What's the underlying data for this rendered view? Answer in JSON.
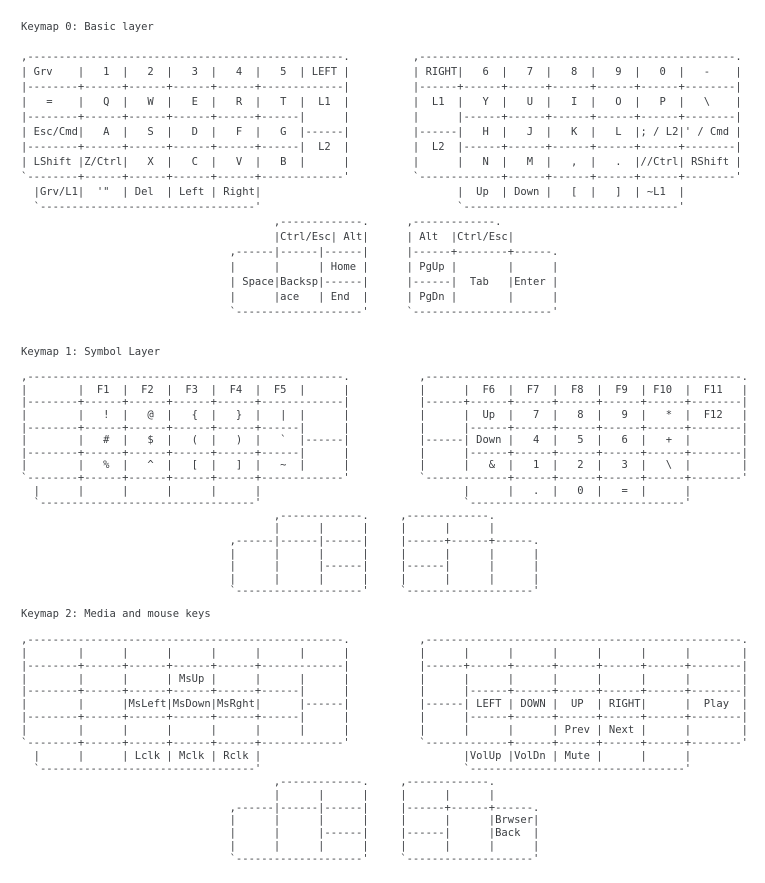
{
  "colors": {
    "text": "#3b3e42",
    "background": "#ffffff"
  },
  "sections": [
    {
      "title": "Keymap 0: Basic layer",
      "art": [
        ",--------------------------------------------------.          ,--------------------------------------------------.",
        "| Grv    |   1  |   2  |   3  |   4  |   5  | LEFT |          | RIGHT|   6  |   7  |   8  |   9  |   0  |   -    |",
        "|--------+------+------+------+------+-------------|          |------+------+------+------+------+------+--------|",
        "|   =    |   Q  |   W  |   E  |   R  |   T  |  L1  |          |  L1  |   Y  |   U  |   I  |   O  |   P  |   \\    |",
        "|--------+------+------+------+------+------|      |          |      |------+------+------+------+------+--------|",
        "| Esc/Cmd|   A  |   S  |   D  |   F  |   G  |------|          |------|   H  |   J  |   K  |   L  |; / L2|' / Cmd |",
        "|--------+------+------+------+------+------|  L2  |          |  L2  |------+------+------+------+------+--------|",
        "| LShift |Z/Ctrl|   X  |   C  |   V  |   B  |      |          |      |   N  |   M  |   ,  |   .  |//Ctrl| RShift |",
        "`--------+------+------+------+------+-------------'          `-------------+------+------+------+------+--------'",
        "  |Grv/L1|  '\"  | Del  | Left | Right|                               |  Up  | Down |   [  |   ]  | ~L1  |",
        "  `----------------------------------'                               `----------------------------------'",
        "                                        ,-------------.      ,-------------.",
        "                                        |Ctrl/Esc| Alt|      | Alt  |Ctrl/Esc|",
        "                                 ,------|------|------|      |------+--------+------.",
        "                                 |      |      | Home |      | PgUp |        |      |",
        "                                 | Space|Backsp|------|      |------|  Tab   |Enter |",
        "                                 |      |ace   | End  |      | PgDn |        |      |",
        "                                 `--------------------'      `----------------------'"
      ]
    },
    {
      "title": "Keymap 1: Symbol Layer",
      "art": [
        ",--------------------------------------------------.           ,--------------------------------------------------.",
        "|        |  F1  |  F2  |  F3  |  F4  |  F5  |      |           |      |  F6  |  F7  |  F8  |  F9  | F10  |  F11   |",
        "|--------+------+------+------+------+-------------|           |------+------+------+------+------+------+--------|",
        "|        |   !  |   @  |   {  |   }  |   |  |      |           |      |  Up  |   7  |   8  |   9  |   *  |  F12   |",
        "|--------+------+------+------+------+------|      |           |      |------+------+------+------+------+--------|",
        "|        |   #  |   $  |   (  |   )  |   `  |------|           |------| Down |   4  |   5  |   6  |   +  |        |",
        "|--------+------+------+------+------+------|      |           |      |------+------+------+------+------+--------|",
        "|        |   %  |   ^  |   [  |   ]  |   ~  |      |           |      |   &  |   1  |   2  |   3  |   \\  |        |",
        "`--------+------+------+------+------+-------------'           `-------------+------+------+------+------+--------'",
        "  |      |      |      |      |      |                                |      |   .  |   0  |   =  |      |",
        "  `----------------------------------'                                `----------------------------------'",
        "                                        ,-------------.     ,-------------.",
        "                                        |      |      |     |      |      |",
        "                                 ,------|------|------|     |------+------+------.",
        "                                 |      |      |      |     |      |      |      |",
        "                                 |      |      |------|     |------|      |      |",
        "                                 |      |      |      |     |      |      |      |",
        "                                 `--------------------'     `--------------------'"
      ]
    },
    {
      "title": "Keymap 2: Media and mouse keys",
      "art": [
        ",--------------------------------------------------.           ,--------------------------------------------------.",
        "|        |      |      |      |      |      |      |           |      |      |      |      |      |      |        |",
        "|--------+------+------+------+------+-------------|           |------+------+------+------+------+------+--------|",
        "|        |      |      | MsUp |      |      |      |           |      |      |      |      |      |      |        |",
        "|--------+------+------+------+------+------|      |           |      |------+------+------+------+------+--------|",
        "|        |      |MsLeft|MsDown|MsRght|      |------|           |------| LEFT | DOWN |  UP  | RIGHT|      |  Play  |",
        "|--------+------+------+------+------+------|      |           |      |------+------+------+------+------+--------|",
        "|        |      |      |      |      |      |      |           |      |      |      | Prev | Next |      |        |",
        "`--------+------+------+------+------+-------------'           `-------------+------+------+------+------+--------'",
        "  |      |      | Lclk | Mclk | Rclk |                                |VolUp |VolDn | Mute |      |      |",
        "  `----------------------------------'                                `----------------------------------'",
        "                                        ,-------------.     ,-------------.",
        "                                        |      |      |     |      |      |",
        "                                 ,------|------|------|     |------+------+------.",
        "                                 |      |      |      |     |      |      |Brwser|",
        "                                 |      |      |------|     |------|      |Back  |",
        "                                 |      |      |      |     |      |      |      |",
        "                                 `--------------------'     `--------------------'"
      ]
    }
  ],
  "keymaps": [
    {
      "layer": "Keymap 0",
      "name": "Basic layer",
      "left_hand_rows": [
        [
          "Grv",
          "1",
          "2",
          "3",
          "4",
          "5",
          "LEFT"
        ],
        [
          "=",
          "Q",
          "W",
          "E",
          "R",
          "T",
          "L1"
        ],
        [
          "Esc/Cmd",
          "A",
          "S",
          "D",
          "F",
          "G",
          "L2"
        ],
        [
          "LShift",
          "Z/Ctrl",
          "X",
          "C",
          "V",
          "B",
          ""
        ]
      ],
      "left_lower_row": [
        "Grv/L1",
        "'\"",
        "Del",
        "Left",
        "Right"
      ],
      "left_thumb_keys": [
        "Ctrl/Esc",
        "Alt",
        "Home",
        "Space",
        "Backspace",
        "End"
      ],
      "right_hand_rows": [
        [
          "RIGHT",
          "6",
          "7",
          "8",
          "9",
          "0",
          "-"
        ],
        [
          "L1",
          "Y",
          "U",
          "I",
          "O",
          "P",
          "\\"
        ],
        [
          "L2",
          "H",
          "J",
          "K",
          "L",
          "; / L2",
          "' / Cmd"
        ],
        [
          "",
          "N",
          "M",
          ",",
          ".",
          "//Ctrl",
          "RShift"
        ]
      ],
      "right_lower_row": [
        "Up",
        "Down",
        "[",
        "]",
        "~L1"
      ],
      "right_thumb_keys": [
        "Alt",
        "Ctrl/Esc",
        "PgUp",
        "Tab",
        "Enter",
        "PgDn"
      ]
    },
    {
      "layer": "Keymap 1",
      "name": "Symbol Layer",
      "left_hand_rows": [
        [
          "",
          "F1",
          "F2",
          "F3",
          "F4",
          "F5",
          ""
        ],
        [
          "",
          "!",
          "@",
          "{",
          "}",
          "|",
          ""
        ],
        [
          "",
          "#",
          "$",
          "(",
          ")",
          "`",
          ""
        ],
        [
          "",
          "%",
          "^",
          "[",
          "]",
          "~",
          ""
        ]
      ],
      "left_lower_row": [
        "",
        "",
        "",
        "",
        ""
      ],
      "left_thumb_keys": [],
      "right_hand_rows": [
        [
          "",
          "F6",
          "F7",
          "F8",
          "F9",
          "F10",
          "F11"
        ],
        [
          "",
          "Up",
          "7",
          "8",
          "9",
          "*",
          "F12"
        ],
        [
          "",
          "Down",
          "4",
          "5",
          "6",
          "+",
          ""
        ],
        [
          "",
          "&",
          "1",
          "2",
          "3",
          "\\",
          ""
        ]
      ],
      "right_lower_row": [
        "",
        ".",
        "0",
        "=",
        ""
      ],
      "right_thumb_keys": []
    },
    {
      "layer": "Keymap 2",
      "name": "Media and mouse keys",
      "left_hand_rows": [
        [
          "",
          "",
          "",
          "",
          "",
          "",
          ""
        ],
        [
          "",
          "",
          "",
          "MsUp",
          "",
          "",
          ""
        ],
        [
          "",
          "",
          "MsLeft",
          "MsDown",
          "MsRght",
          "",
          ""
        ],
        [
          "",
          "",
          "",
          "",
          "",
          "",
          ""
        ]
      ],
      "left_lower_row": [
        "",
        "",
        "Lclk",
        "Mclk",
        "Rclk"
      ],
      "left_thumb_keys": [],
      "right_hand_rows": [
        [
          "",
          "",
          "",
          "",
          "",
          "",
          ""
        ],
        [
          "",
          "",
          "",
          "",
          "",
          "",
          ""
        ],
        [
          "",
          "LEFT",
          "DOWN",
          "UP",
          "RIGHT",
          "",
          "Play"
        ],
        [
          "",
          "",
          "",
          "Prev",
          "Next",
          "",
          ""
        ]
      ],
      "right_lower_row": [
        "VolUp",
        "VolDn",
        "Mute",
        "",
        ""
      ],
      "right_thumb_keys": [
        "Brwser Back"
      ]
    }
  ]
}
